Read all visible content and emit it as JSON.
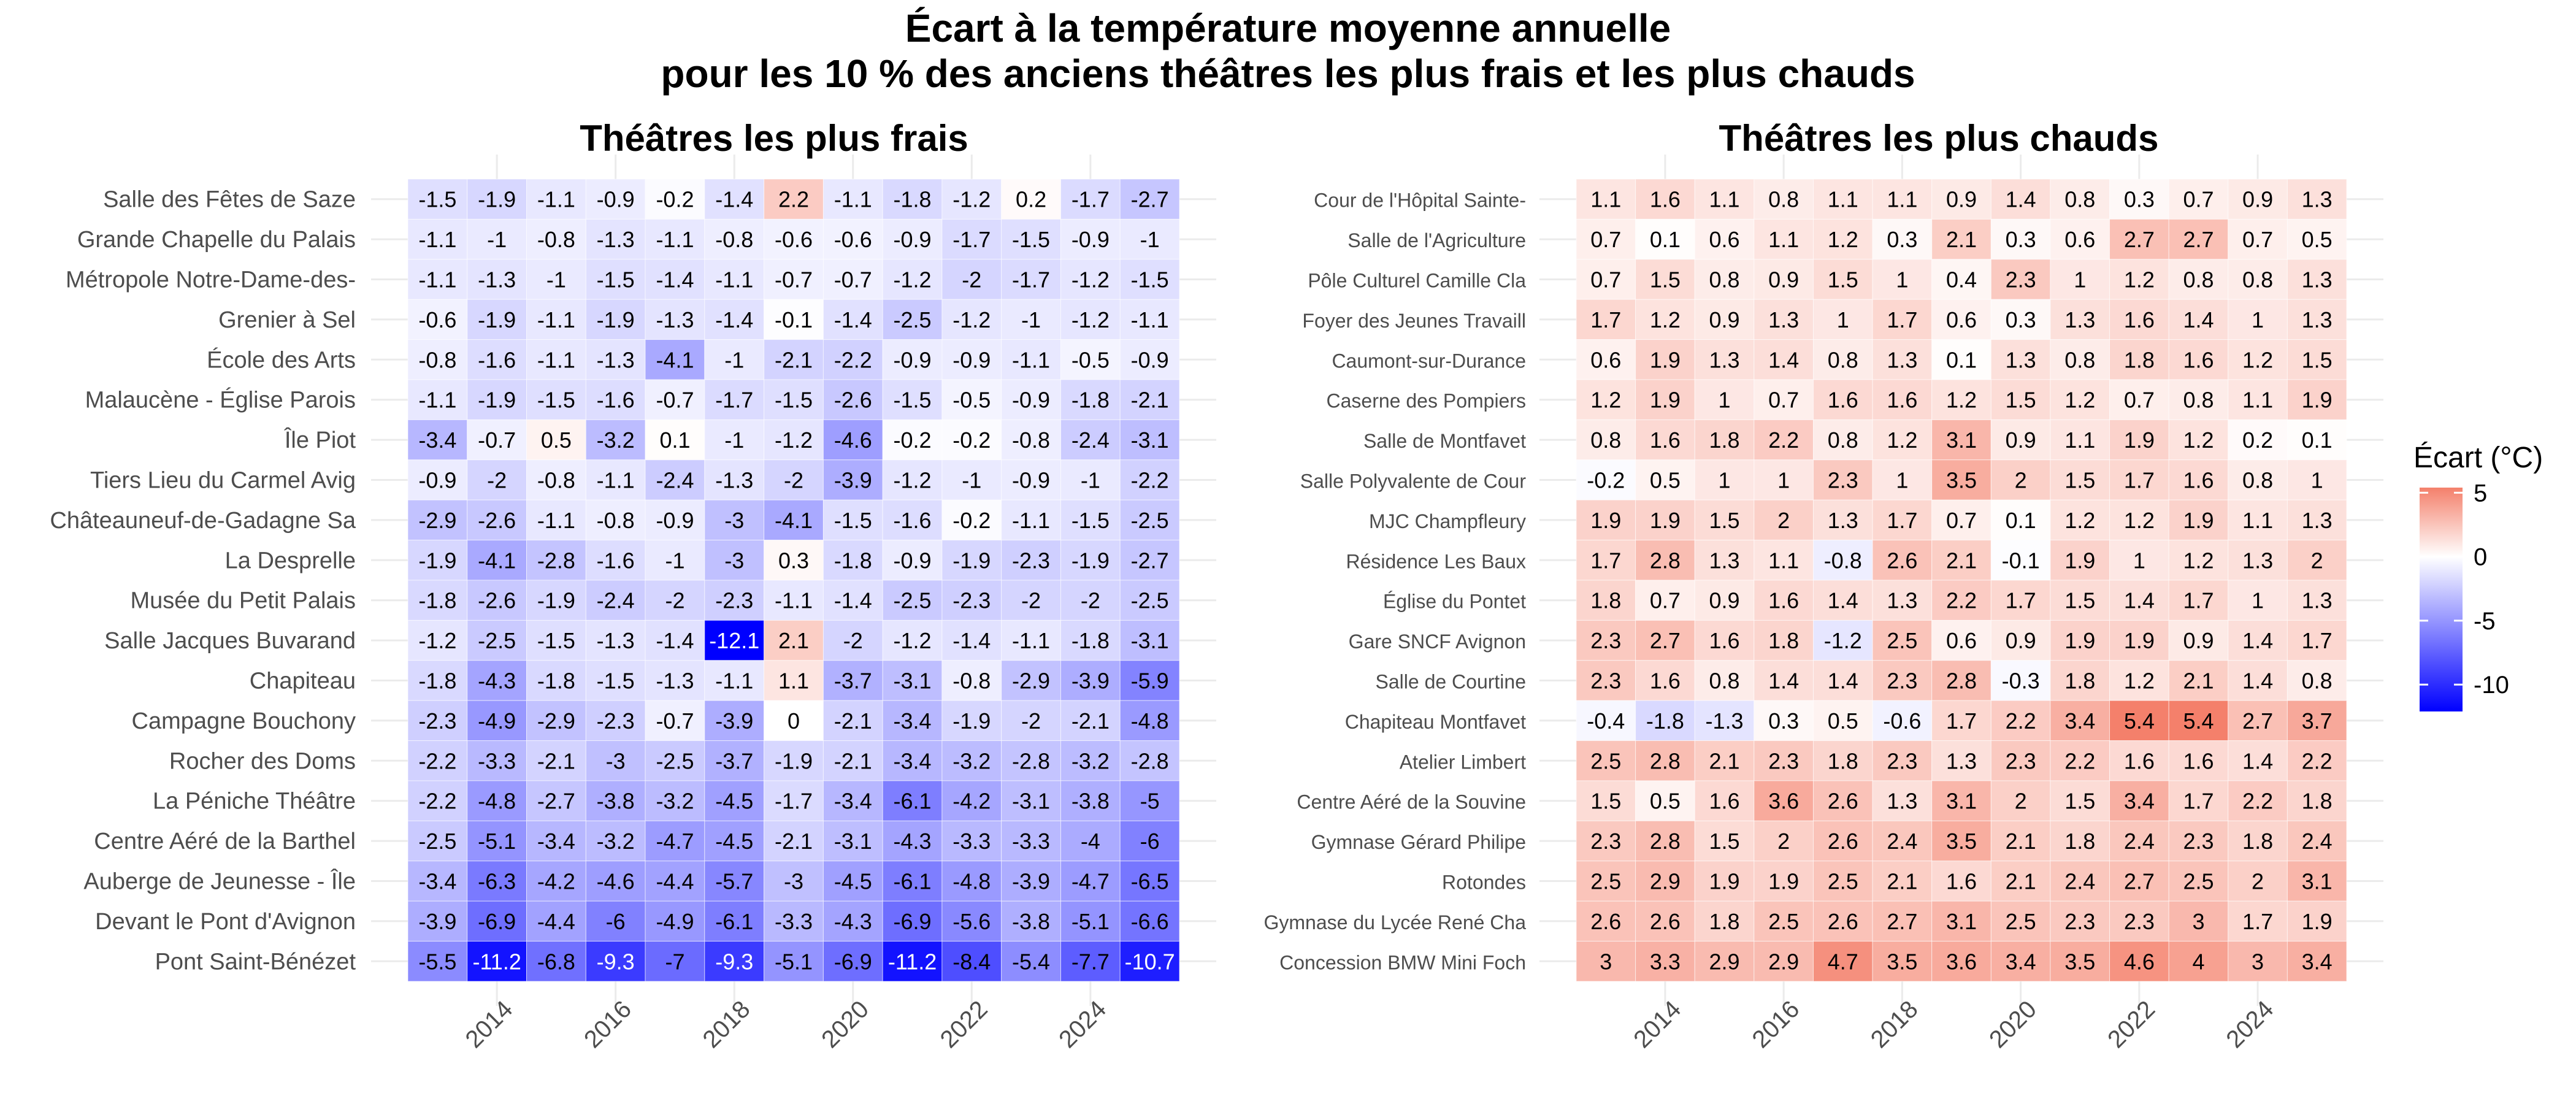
{
  "chart_data": {
    "type": "heatmap",
    "title_line1": "Écart à la température moyenne annuelle",
    "title_line2": "pour les 10 % des anciens théâtres les plus frais et les plus chauds",
    "x_tick_labels": [
      "2014",
      "2016",
      "2018",
      "2020",
      "2022",
      "2024"
    ],
    "years": [
      2013,
      2014,
      2015,
      2016,
      2017,
      2018,
      2019,
      2020,
      2021,
      2022,
      2023,
      2024,
      2025
    ],
    "legend": {
      "title": "Écart (°C)",
      "ticks": [
        5,
        0,
        -5,
        -10
      ],
      "range": [
        -12.1,
        5.4
      ],
      "low_color": "#0000ff",
      "mid_color": "#ffffff",
      "high_color": "#f4806b"
    },
    "panels": [
      {
        "title": "Théâtres les plus frais",
        "rows": [
          {
            "name": "Salle des Fêtes de Saze",
            "values": [
              -1.5,
              -1.9,
              -1.1,
              -0.9,
              -0.2,
              -1.4,
              2.2,
              -1.1,
              -1.8,
              -1.2,
              0.2,
              -1.7,
              -2.7
            ]
          },
          {
            "name": "Grande Chapelle du Palais",
            "values": [
              -1.1,
              -1,
              -0.8,
              -1.3,
              -1.1,
              -0.8,
              -0.6,
              -0.6,
              -0.9,
              -1.7,
              -1.5,
              -0.9,
              -1
            ]
          },
          {
            "name": "Métropole Notre-Dame-des-",
            "values": [
              -1.1,
              -1.3,
              -1,
              -1.5,
              -1.4,
              -1.1,
              -0.7,
              -0.7,
              -1.2,
              -2,
              -1.7,
              -1.2,
              -1.5
            ]
          },
          {
            "name": "Grenier à Sel",
            "values": [
              -0.6,
              -1.9,
              -1.1,
              -1.9,
              -1.3,
              -1.4,
              -0.1,
              -1.4,
              -2.5,
              -1.2,
              -1,
              -1.2,
              -1.1
            ]
          },
          {
            "name": "École des Arts",
            "values": [
              -0.8,
              -1.6,
              -1.1,
              -1.3,
              -4.1,
              -1,
              -2.1,
              -2.2,
              -0.9,
              -0.9,
              -1.1,
              -0.5,
              -0.9
            ]
          },
          {
            "name": "Malaucène - Église Parois",
            "values": [
              -1.1,
              -1.9,
              -1.5,
              -1.6,
              -0.7,
              -1.7,
              -1.5,
              -2.6,
              -1.5,
              -0.5,
              -0.9,
              -1.8,
              -2.1
            ]
          },
          {
            "name": "Île Piot",
            "values": [
              -3.4,
              -0.7,
              0.5,
              -3.2,
              0.1,
              -1,
              -1.2,
              -4.6,
              -0.2,
              -0.2,
              -0.8,
              -2.4,
              -3.1
            ]
          },
          {
            "name": "Tiers Lieu du Carmel Avig",
            "values": [
              -0.9,
              -2,
              -0.8,
              -1.1,
              -2.4,
              -1.3,
              -2,
              -3.9,
              -1.2,
              -1,
              -0.9,
              -1,
              -2.2
            ]
          },
          {
            "name": "Châteauneuf-de-Gadagne Sa",
            "values": [
              -2.9,
              -2.6,
              -1.1,
              -0.8,
              -0.9,
              -3,
              -4.1,
              -1.5,
              -1.6,
              -0.2,
              -1.1,
              -1.5,
              -2.5
            ]
          },
          {
            "name": "La Desprelle",
            "values": [
              -1.9,
              -4.1,
              -2.8,
              -1.6,
              -1,
              -3,
              0.3,
              -1.8,
              -0.9,
              -1.9,
              -2.3,
              -1.9,
              -2.7
            ]
          },
          {
            "name": "Musée du Petit Palais",
            "values": [
              -1.8,
              -2.6,
              -1.9,
              -2.4,
              -2,
              -2.3,
              -1.1,
              -1.4,
              -2.5,
              -2.3,
              -2,
              -2,
              -2.5
            ]
          },
          {
            "name": "Salle Jacques Buvarand",
            "values": [
              -1.2,
              -2.5,
              -1.5,
              -1.3,
              -1.4,
              -12.1,
              2.1,
              -2,
              -1.2,
              -1.4,
              -1.1,
              -1.8,
              -3.1
            ]
          },
          {
            "name": "Chapiteau",
            "values": [
              -1.8,
              -4.3,
              -1.8,
              -1.5,
              -1.3,
              -1.1,
              1.1,
              -3.7,
              -3.1,
              -0.8,
              -2.9,
              -3.9,
              -5.9
            ]
          },
          {
            "name": "Campagne Bouchony",
            "values": [
              -2.3,
              -4.9,
              -2.9,
              -2.3,
              -0.7,
              -3.9,
              0,
              -2.1,
              -3.4,
              -1.9,
              -2,
              -2.1,
              -4.8
            ]
          },
          {
            "name": "Rocher des Doms",
            "values": [
              -2.2,
              -3.3,
              -2.1,
              -3,
              -2.5,
              -3.7,
              -1.9,
              -2.1,
              -3.4,
              -3.2,
              -2.8,
              -3.2,
              -2.8
            ]
          },
          {
            "name": "La Péniche Théâtre",
            "values": [
              -2.2,
              -4.8,
              -2.7,
              -3.8,
              -3.2,
              -4.5,
              -1.7,
              -3.4,
              -6.1,
              -4.2,
              -3.1,
              -3.8,
              -5
            ]
          },
          {
            "name": "Centre Aéré de la Barthel",
            "values": [
              -2.5,
              -5.1,
              -3.4,
              -3.2,
              -4.7,
              -4.5,
              -2.1,
              -3.1,
              -4.3,
              -3.3,
              -3.3,
              -4,
              -6
            ]
          },
          {
            "name": "Auberge de Jeunesse - Île",
            "values": [
              -3.4,
              -6.3,
              -4.2,
              -4.6,
              -4.4,
              -5.7,
              -3,
              -4.5,
              -6.1,
              -4.8,
              -3.9,
              -4.7,
              -6.5
            ]
          },
          {
            "name": "Devant le Pont d'Avignon",
            "values": [
              -3.9,
              -6.9,
              -4.4,
              -6,
              -4.9,
              -6.1,
              -3.3,
              -4.3,
              -6.9,
              -5.6,
              -3.8,
              -5.1,
              -6.6
            ]
          },
          {
            "name": "Pont Saint-Bénézet",
            "values": [
              -5.5,
              -11.2,
              -6.8,
              -9.3,
              -7,
              -9.3,
              -5.1,
              -6.9,
              -11.2,
              -8.4,
              -5.4,
              -7.7,
              -10.7
            ]
          }
        ]
      },
      {
        "title": "Théâtres les plus chauds",
        "rows": [
          {
            "name": "Cour de l'Hôpital Sainte-",
            "values": [
              1.1,
              1.6,
              1.1,
              0.8,
              1.1,
              1.1,
              0.9,
              1.4,
              0.8,
              0.3,
              0.7,
              0.9,
              1.3
            ]
          },
          {
            "name": "Salle de l'Agriculture",
            "values": [
              0.7,
              0.1,
              0.6,
              1.1,
              1.2,
              0.3,
              2.1,
              0.3,
              0.6,
              2.7,
              2.7,
              0.7,
              0.5
            ]
          },
          {
            "name": "Pôle Culturel Camille Cla",
            "values": [
              0.7,
              1.5,
              0.8,
              0.9,
              1.5,
              1,
              0.4,
              2.3,
              1,
              1.2,
              0.8,
              0.8,
              1.3
            ]
          },
          {
            "name": "Foyer des Jeunes Travaill",
            "values": [
              1.7,
              1.2,
              0.9,
              1.3,
              1,
              1.7,
              0.6,
              0.3,
              1.3,
              1.6,
              1.4,
              1,
              1.3
            ]
          },
          {
            "name": "Caumont-sur-Durance",
            "values": [
              0.6,
              1.9,
              1.3,
              1.4,
              0.8,
              1.3,
              0.1,
              1.3,
              0.8,
              1.8,
              1.6,
              1.2,
              1.5
            ]
          },
          {
            "name": "Caserne des Pompiers",
            "values": [
              1.2,
              1.9,
              1,
              0.7,
              1.6,
              1.6,
              1.2,
              1.5,
              1.2,
              0.7,
              0.8,
              1.1,
              1.9
            ]
          },
          {
            "name": "Salle de Montfavet",
            "values": [
              0.8,
              1.6,
              1.8,
              2.2,
              0.8,
              1.2,
              3.1,
              0.9,
              1.1,
              1.9,
              1.2,
              0.2,
              0.1
            ]
          },
          {
            "name": "Salle Polyvalente de Cour",
            "values": [
              -0.2,
              0.5,
              1,
              1,
              2.3,
              1,
              3.5,
              2,
              1.5,
              1.7,
              1.6,
              0.8,
              1
            ]
          },
          {
            "name": "MJC Champfleury",
            "values": [
              1.9,
              1.9,
              1.5,
              2,
              1.3,
              1.7,
              0.7,
              0.1,
              1.2,
              1.2,
              1.9,
              1.1,
              1.3
            ]
          },
          {
            "name": "Résidence Les Baux",
            "values": [
              1.7,
              2.8,
              1.3,
              1.1,
              -0.8,
              2.6,
              2.1,
              -0.1,
              1.9,
              1,
              1.2,
              1.3,
              2
            ]
          },
          {
            "name": "Église du Pontet",
            "values": [
              1.8,
              0.7,
              0.9,
              1.6,
              1.4,
              1.3,
              2.2,
              1.7,
              1.5,
              1.4,
              1.7,
              1,
              1.3
            ]
          },
          {
            "name": "Gare SNCF Avignon",
            "values": [
              2.3,
              2.7,
              1.6,
              1.8,
              -1.2,
              2.5,
              0.6,
              0.9,
              1.9,
              1.9,
              0.9,
              1.4,
              1.7
            ]
          },
          {
            "name": "Salle de Courtine",
            "values": [
              2.3,
              1.6,
              0.8,
              1.4,
              1.4,
              2.3,
              2.8,
              -0.3,
              1.8,
              1.2,
              2.1,
              1.4,
              0.8
            ]
          },
          {
            "name": "Chapiteau Montfavet",
            "values": [
              -0.4,
              -1.8,
              -1.3,
              0.3,
              0.5,
              -0.6,
              1.7,
              2.2,
              3.4,
              5.4,
              5.4,
              2.7,
              3.7
            ]
          },
          {
            "name": "Atelier Limbert",
            "values": [
              2.5,
              2.8,
              2.1,
              2.3,
              1.8,
              2.3,
              1.3,
              2.3,
              2.2,
              1.6,
              1.6,
              1.4,
              2.2
            ]
          },
          {
            "name": "Centre Aéré de la Souvine",
            "values": [
              1.5,
              0.5,
              1.6,
              3.6,
              2.6,
              1.3,
              3.1,
              2,
              1.5,
              3.4,
              1.7,
              2.2,
              1.8
            ]
          },
          {
            "name": "Gymnase Gérard Philipe",
            "values": [
              2.3,
              2.8,
              1.5,
              2,
              2.6,
              2.4,
              3.5,
              2.1,
              1.8,
              2.4,
              2.3,
              1.8,
              2.4
            ]
          },
          {
            "name": "Rotondes",
            "values": [
              2.5,
              2.9,
              1.9,
              1.9,
              2.5,
              2.1,
              1.6,
              2.1,
              2.4,
              2.7,
              2.5,
              2,
              3.1
            ]
          },
          {
            "name": "Gymnase du Lycée René Cha",
            "values": [
              2.6,
              2.6,
              1.8,
              2.5,
              2.6,
              2.7,
              3.1,
              2.5,
              2.3,
              2.3,
              3,
              1.7,
              1.9
            ]
          },
          {
            "name": "Concession BMW Mini Foch",
            "values": [
              3,
              3.3,
              2.9,
              2.9,
              4.7,
              3.5,
              3.6,
              3.4,
              3.5,
              4.6,
              4,
              3,
              3.4
            ]
          }
        ]
      }
    ]
  }
}
